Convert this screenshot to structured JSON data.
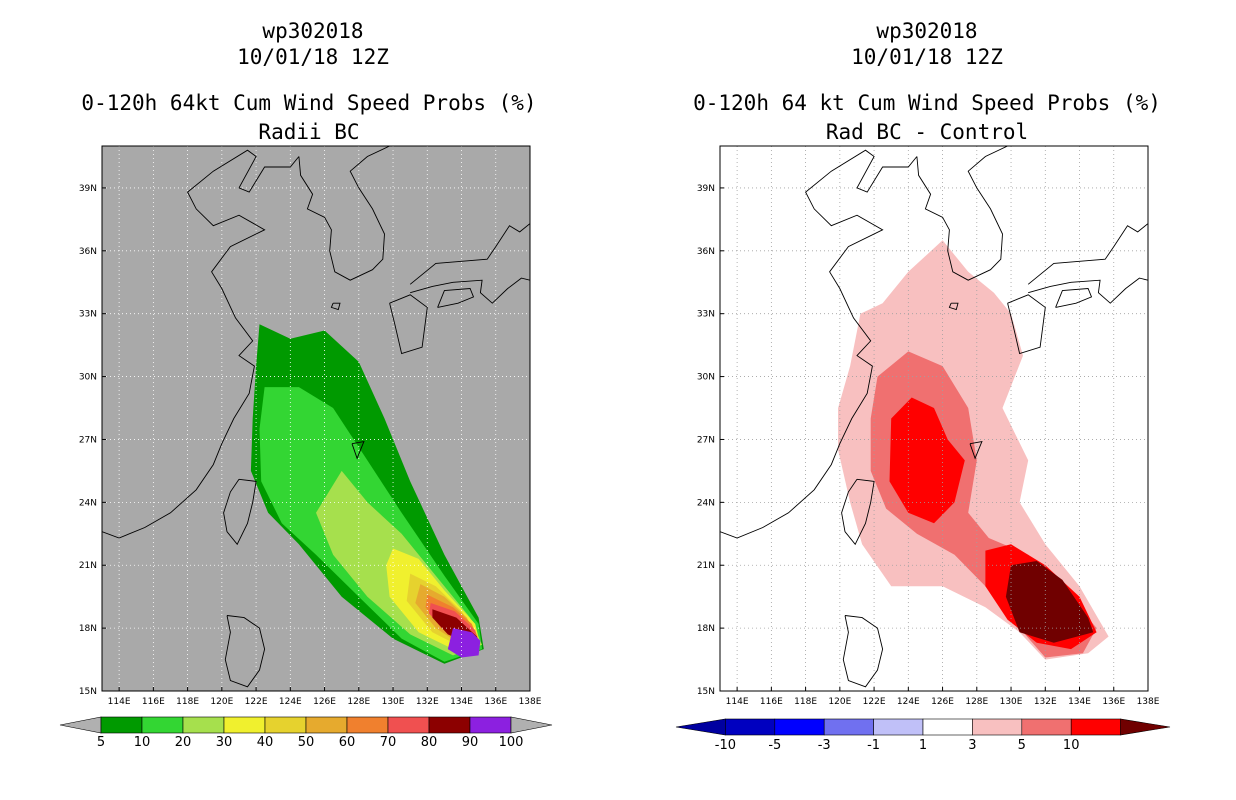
{
  "chart_data": [
    {
      "type": "heatmap",
      "storm_id": "wp302018",
      "datetime": "10/01/18 12Z",
      "title": "0-120h 64kt Cum Wind Speed Probs (%)",
      "subtitle": "Radii BC",
      "lon_range": [
        113,
        138
      ],
      "lat_range": [
        15,
        41
      ],
      "x_ticks": [
        "114E",
        "116E",
        "118E",
        "120E",
        "122E",
        "124E",
        "126E",
        "128E",
        "130E",
        "132E",
        "134E",
        "136E",
        "138E"
      ],
      "y_ticks": [
        "15N",
        "18N",
        "21N",
        "24N",
        "27N",
        "30N",
        "33N",
        "36N",
        "39N"
      ],
      "colorbar": {
        "levels": [
          "5",
          "10",
          "20",
          "30",
          "40",
          "50",
          "60",
          "70",
          "80",
          "90",
          "100"
        ],
        "colors": [
          "#009a00",
          "#33d633",
          "#a6e04d",
          "#f0f02e",
          "#e6d22e",
          "#e6aa2e",
          "#f0802e",
          "#f05050",
          "#8c0000",
          "#8c20e0"
        ],
        "under_color": "#b0b0b0",
        "over_color": "#b0b0b0"
      },
      "contours": [
        {
          "level": "5",
          "color": "#009a00",
          "points": [
            [
              122.2,
              32.5
            ],
            [
              124,
              31.8
            ],
            [
              126,
              32.2
            ],
            [
              128,
              30.7
            ],
            [
              129.5,
              28
            ],
            [
              131,
              25
            ],
            [
              133,
              21.5
            ],
            [
              135,
              18.5
            ],
            [
              135.3,
              17
            ],
            [
              133,
              16.3
            ],
            [
              130,
              17.5
            ],
            [
              127,
              19.5
            ],
            [
              124.5,
              22
            ],
            [
              122.7,
              23.5
            ],
            [
              121.7,
              25.5
            ],
            [
              121.8,
              28
            ],
            [
              122,
              30.5
            ]
          ]
        },
        {
          "level": "10",
          "color": "#33d633",
          "points": [
            [
              122.5,
              29.5
            ],
            [
              124.5,
              29.5
            ],
            [
              126.5,
              28.5
            ],
            [
              128.5,
              26
            ],
            [
              130.5,
              23.5
            ],
            [
              133,
              20.5
            ],
            [
              135,
              18.2
            ],
            [
              135.2,
              17
            ],
            [
              133,
              16.4
            ],
            [
              130.5,
              17.5
            ],
            [
              128,
              19.5
            ],
            [
              125.5,
              21.5
            ],
            [
              123.5,
              23
            ],
            [
              122.3,
              25
            ],
            [
              122.2,
              27.5
            ]
          ]
        },
        {
          "level": "20",
          "color": "#a6e04d",
          "points": [
            [
              127,
              25.5
            ],
            [
              128.5,
              24
            ],
            [
              130.5,
              22.5
            ],
            [
              132.5,
              20.5
            ],
            [
              134.5,
              18.5
            ],
            [
              135.2,
              17.2
            ],
            [
              133.5,
              16.7
            ],
            [
              131,
              17.7
            ],
            [
              128.5,
              19.5
            ],
            [
              126.5,
              21.5
            ],
            [
              125.5,
              23.5
            ]
          ]
        },
        {
          "level": "30",
          "color": "#f0f02e",
          "points": [
            [
              130,
              21.8
            ],
            [
              131.5,
              21.3
            ],
            [
              133,
              19.8
            ],
            [
              134.8,
              18.2
            ],
            [
              135.1,
              17.2
            ],
            [
              133.5,
              17
            ],
            [
              131.5,
              17.8
            ],
            [
              129.8,
              19.5
            ],
            [
              129.6,
              21
            ]
          ]
        },
        {
          "level": "40",
          "color": "#e6d22e",
          "points": [
            [
              131,
              20.6
            ],
            [
              132.5,
              20
            ],
            [
              134,
              18.8
            ],
            [
              135,
              17.6
            ],
            [
              134,
              17.1
            ],
            [
              132.3,
              17.8
            ],
            [
              130.8,
              19.3
            ]
          ]
        },
        {
          "level": "50",
          "color": "#e6aa2e",
          "points": [
            [
              131.6,
              20.1
            ],
            [
              133,
              19.5
            ],
            [
              134.3,
              18.5
            ],
            [
              135,
              17.5
            ],
            [
              134,
              17.2
            ],
            [
              132.5,
              18
            ],
            [
              131.3,
              19.2
            ]
          ]
        },
        {
          "level": "60",
          "color": "#f0802e",
          "points": [
            [
              132,
              19.6
            ],
            [
              133.5,
              19
            ],
            [
              134.6,
              18.2
            ],
            [
              135,
              17.4
            ],
            [
              134.2,
              17.3
            ],
            [
              132.8,
              18
            ],
            [
              131.9,
              19
            ]
          ]
        },
        {
          "level": "70",
          "color": "#f05050",
          "points": [
            [
              132.2,
              19.2
            ],
            [
              133.6,
              18.8
            ],
            [
              134.8,
              17.9
            ],
            [
              135,
              17.3
            ],
            [
              134.3,
              17.3
            ],
            [
              133,
              17.9
            ],
            [
              132.1,
              18.7
            ]
          ]
        },
        {
          "level": "80",
          "color": "#8c0000",
          "points": [
            [
              132.3,
              18.9
            ],
            [
              133.7,
              18.5
            ],
            [
              134.9,
              17.6
            ],
            [
              135,
              17.2
            ],
            [
              134.3,
              17.3
            ],
            [
              133.2,
              17.7
            ],
            [
              132.3,
              18.5
            ]
          ]
        },
        {
          "level": "90",
          "color": "#8c20e0",
          "points": [
            [
              133.5,
              18
            ],
            [
              134.6,
              17.8
            ],
            [
              135.1,
              17.4
            ],
            [
              135,
              16.7
            ],
            [
              134,
              16.6
            ],
            [
              133.2,
              17
            ]
          ]
        }
      ]
    },
    {
      "type": "heatmap",
      "storm_id": "wp302018",
      "datetime": "10/01/18 12Z",
      "title": "0-120h 64 kt Cum Wind Speed Probs (%)",
      "subtitle": "Rad BC - Control",
      "lon_range": [
        113,
        138
      ],
      "lat_range": [
        15,
        41
      ],
      "x_ticks": [
        "114E",
        "116E",
        "118E",
        "120E",
        "122E",
        "124E",
        "126E",
        "128E",
        "130E",
        "132E",
        "134E",
        "136E",
        "138E"
      ],
      "y_ticks": [
        "15N",
        "18N",
        "21N",
        "24N",
        "27N",
        "30N",
        "33N",
        "36N",
        "39N"
      ],
      "colorbar": {
        "levels": [
          "-10",
          "-5",
          "-3",
          "-1",
          "1",
          "3",
          "5",
          "10"
        ],
        "colors": [
          "#0000c0",
          "#0000ff",
          "#7070f0",
          "#c0c0f8",
          "#ffffff",
          "#f8c0c0",
          "#f07070",
          "#ff0000"
        ],
        "under_color": "#0000a0",
        "over_color": "#700000"
      },
      "contours": [
        {
          "level": "1",
          "color": "#f8c0c0",
          "points": [
            [
              121.2,
              33
            ],
            [
              122.5,
              33.5
            ],
            [
              124,
              35
            ],
            [
              126,
              36.5
            ],
            [
              127.5,
              35
            ],
            [
              129,
              34
            ],
            [
              130,
              33
            ],
            [
              130.7,
              31
            ],
            [
              129.5,
              28.5
            ],
            [
              131,
              26
            ],
            [
              130.5,
              24
            ],
            [
              132,
              22
            ],
            [
              134,
              20
            ],
            [
              135.7,
              17.6
            ],
            [
              134.5,
              16.8
            ],
            [
              132,
              16.5
            ],
            [
              130.5,
              17.8
            ],
            [
              128.5,
              19
            ],
            [
              126,
              20
            ],
            [
              123,
              20
            ],
            [
              121.3,
              22
            ],
            [
              120.6,
              24
            ],
            [
              119.9,
              26.5
            ],
            [
              119.9,
              28.5
            ],
            [
              120.6,
              30.5
            ]
          ]
        },
        {
          "level": "3",
          "color": "#f07070",
          "points": [
            [
              122.2,
              30
            ],
            [
              124,
              31.2
            ],
            [
              126,
              30.5
            ],
            [
              127.5,
              28.5
            ],
            [
              128,
              26
            ],
            [
              127.5,
              23.5
            ],
            [
              128.7,
              22.3
            ],
            [
              131,
              21.5
            ],
            [
              133,
              20
            ],
            [
              135,
              18
            ],
            [
              134.2,
              16.8
            ],
            [
              132,
              16.6
            ],
            [
              130.5,
              18
            ],
            [
              128.5,
              20
            ],
            [
              126.7,
              21.5
            ],
            [
              124.5,
              22.5
            ],
            [
              122.7,
              23.7
            ],
            [
              121.8,
              25.5
            ],
            [
              121.8,
              28
            ]
          ]
        },
        {
          "level": "5",
          "color": "#ff0000",
          "points": [
            [
              123,
              28
            ],
            [
              124.2,
              29
            ],
            [
              125.5,
              28.5
            ],
            [
              126.3,
              27
            ],
            [
              127.3,
              26
            ],
            [
              126.7,
              24
            ],
            [
              125.5,
              23
            ],
            [
              124,
              23.5
            ],
            [
              122.9,
              25
            ]
          ]
        },
        {
          "level": "5b",
          "color": "#ff0000",
          "points": [
            [
              128.5,
              21.7
            ],
            [
              130,
              22
            ],
            [
              132,
              21
            ],
            [
              134,
              19.5
            ],
            [
              135,
              17.8
            ],
            [
              133.5,
              17
            ],
            [
              131.5,
              17.3
            ],
            [
              129.8,
              18.4
            ],
            [
              128.5,
              20
            ]
          ]
        },
        {
          "level": "10",
          "color": "#700000",
          "points": [
            [
              130,
              21
            ],
            [
              131.5,
              21.2
            ],
            [
              133,
              20.3
            ],
            [
              134.5,
              18.5
            ],
            [
              134.8,
              17.8
            ],
            [
              132.5,
              17.3
            ],
            [
              130.5,
              17.8
            ],
            [
              129.7,
              19.5
            ]
          ]
        }
      ]
    }
  ]
}
